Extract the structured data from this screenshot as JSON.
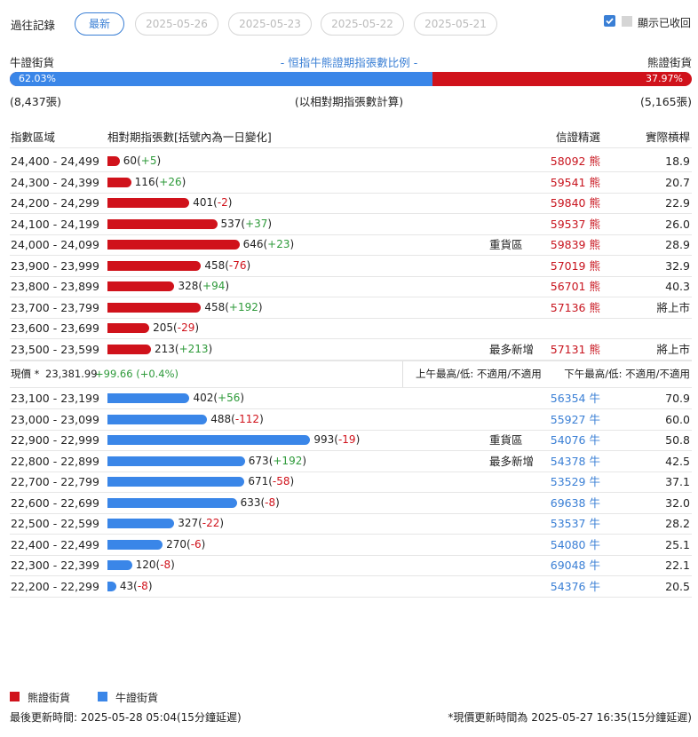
{
  "header": {
    "title": "過往記錄",
    "tabs": [
      "最新",
      "2025-05-26",
      "2025-05-23",
      "2025-05-22",
      "2025-05-21"
    ],
    "toggle_label": "顯示已收回"
  },
  "summary": {
    "bull_label": "牛證街貨",
    "title": "- 恒指牛熊證期指張數比例 -",
    "bear_label": "熊證街貨",
    "bull_pct": {
      "value": 62.03,
      "label": "62.03%"
    },
    "bear_pct": {
      "value": 37.97,
      "label": "37.97%"
    },
    "bull_count": "(8,437張)",
    "note": "(以相對期指張數計算)",
    "bear_count": "(5,165張)"
  },
  "table": {
    "columns": [
      "指數區域",
      "相對期指張數[括號內為一日變化]",
      "信證精選",
      "實際槓桿"
    ],
    "bear_rows": [
      {
        "range": "24,400 - 24,499",
        "count": 60,
        "change": "+5",
        "warrant": "58092 熊",
        "leverage": "18.9"
      },
      {
        "range": "24,300 - 24,399",
        "count": 116,
        "change": "+26",
        "warrant": "59541 熊",
        "leverage": "20.7"
      },
      {
        "range": "24,200 - 24,299",
        "count": 401,
        "change": "-2",
        "warrant": "59840 熊",
        "leverage": "22.9"
      },
      {
        "range": "24,100 - 24,199",
        "count": 537,
        "change": "+37",
        "warrant": "59537 熊",
        "leverage": "26.0"
      },
      {
        "range": "24,000 - 24,099",
        "count": 646,
        "change": "+23",
        "note": "重貨區",
        "warrant": "59839 熊",
        "leverage": "28.9"
      },
      {
        "range": "23,900 - 23,999",
        "count": 458,
        "change": "-76",
        "warrant": "57019 熊",
        "leverage": "32.9"
      },
      {
        "range": "23,800 - 23,899",
        "count": 328,
        "change": "+94",
        "warrant": "56701 熊",
        "leverage": "40.3"
      },
      {
        "range": "23,700 - 23,799",
        "count": 458,
        "change": "+192",
        "warrant": "57136 熊",
        "leverage": "將上市"
      },
      {
        "range": "23,600 - 23,699",
        "count": 205,
        "change": "-29"
      },
      {
        "range": "23,500 - 23,599",
        "count": 213,
        "change": "+213",
        "note": "最多新增",
        "warrant": "57131 熊",
        "leverage": "將上市"
      }
    ],
    "spot": {
      "label": "現價 *",
      "price": "23,381.99",
      "change": "+99.66 (+0.4%)",
      "am": "上午最高/低: 不適用/不適用",
      "pm": "下午最高/低: 不適用/不適用"
    },
    "bull_rows": [
      {
        "range": "23,100 - 23,199",
        "count": 402,
        "change": "+56",
        "warrant": "56354 牛",
        "leverage": "70.9"
      },
      {
        "range": "23,000 - 23,099",
        "count": 488,
        "change": "-112",
        "warrant": "55927 牛",
        "leverage": "60.0"
      },
      {
        "range": "22,900 - 22,999",
        "count": 993,
        "change": "-19",
        "note": "重貨區",
        "warrant": "54076 牛",
        "leverage": "50.8"
      },
      {
        "range": "22,800 - 22,899",
        "count": 673,
        "change": "+192",
        "note": "最多新增",
        "warrant": "54378 牛",
        "leverage": "42.5"
      },
      {
        "range": "22,700 - 22,799",
        "count": 671,
        "change": "-58",
        "warrant": "53529 牛",
        "leverage": "37.1"
      },
      {
        "range": "22,600 - 22,699",
        "count": 633,
        "change": "-8",
        "warrant": "69638 牛",
        "leverage": "32.0"
      },
      {
        "range": "22,500 - 22,599",
        "count": 327,
        "change": "-22",
        "warrant": "53537 牛",
        "leverage": "28.2"
      },
      {
        "range": "22,400 - 22,499",
        "count": 270,
        "change": "-6",
        "warrant": "54080 牛",
        "leverage": "25.1"
      },
      {
        "range": "22,300 - 22,399",
        "count": 120,
        "change": "-8",
        "warrant": "69048 牛",
        "leverage": "22.1"
      },
      {
        "range": "22,200 - 22,299",
        "count": 43,
        "change": "-8",
        "warrant": "54376 牛",
        "leverage": "20.5"
      }
    ]
  },
  "legend": [
    "熊證街貨",
    "牛證街貨"
  ],
  "footer": {
    "updated": "最後更新時間: 2025-05-28 05:04(15分鐘延遲)",
    "spot_updated": "*現價更新時間為 2025-05-27 16:35(15分鐘延遲)"
  }
}
